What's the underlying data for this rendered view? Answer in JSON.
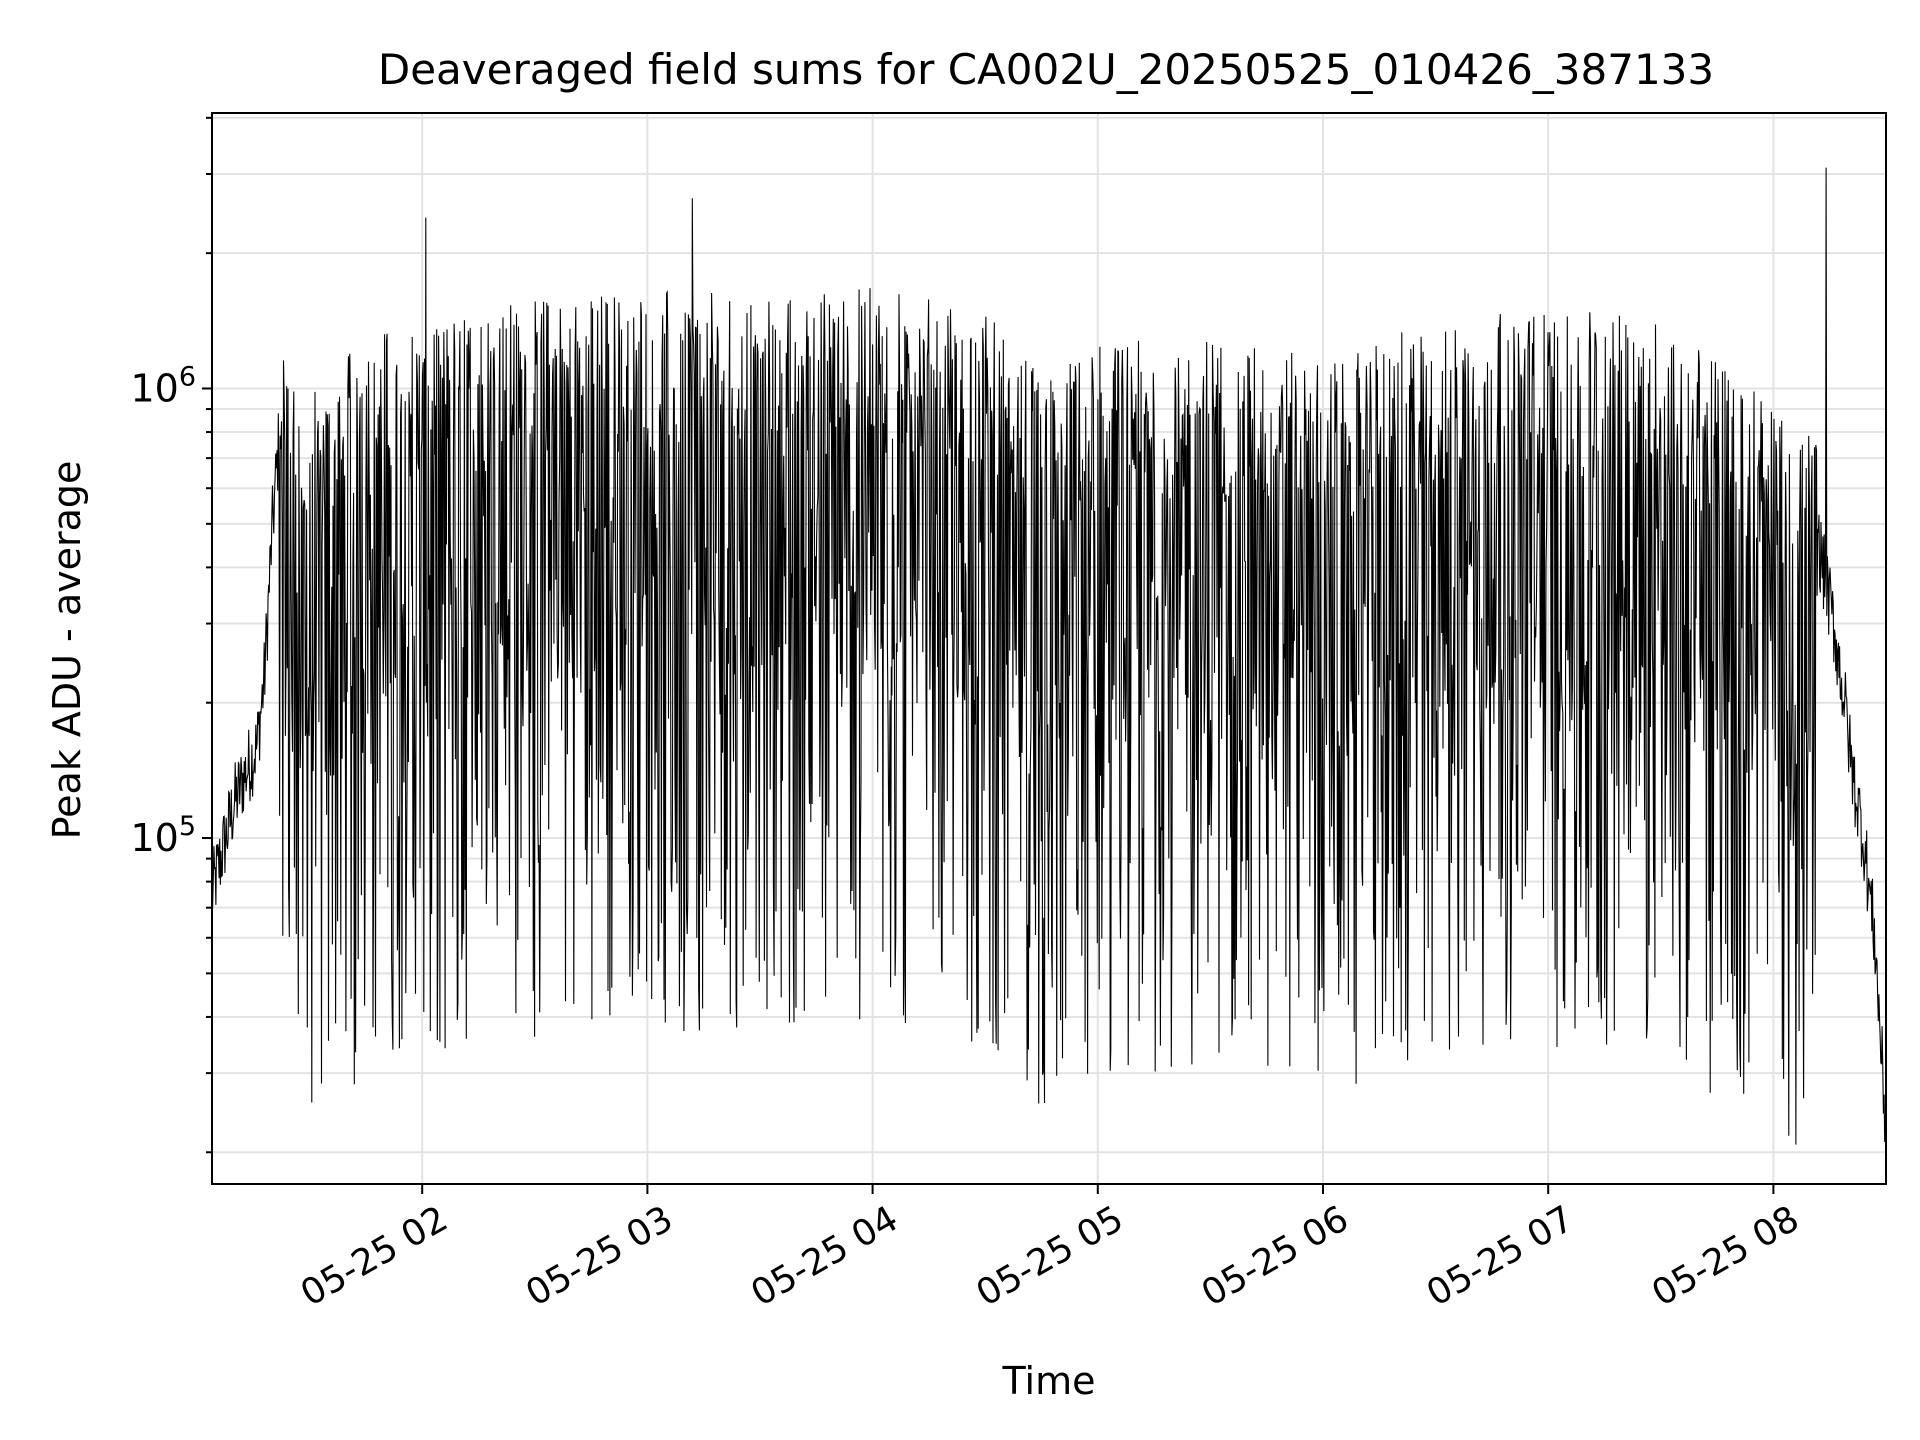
{
  "chart_data": {
    "type": "line",
    "title": "Deaveraged field sums for CA002U_20250525_010426_387133",
    "xlabel": "Time",
    "ylabel": "Peak ADU - average",
    "x_ticks": [
      "05-25 02",
      "05-25 03",
      "05-25 04",
      "05-25 05",
      "05-25 06",
      "05-25 07",
      "05-25 08"
    ],
    "xlim": [
      "2025-05-25 01:04",
      "2025-05-25 08:30"
    ],
    "y_scale": "log",
    "y_ticks": [
      {
        "value": 100000,
        "base": "10",
        "exp": "5"
      },
      {
        "value": 1000000,
        "base": "10",
        "exp": "6"
      }
    ],
    "ylim": [
      17000,
      4100000
    ],
    "grid": true,
    "line_color": "#000000",
    "grid_color": "#e3e3e3",
    "series": [
      {
        "name": "",
        "points": [
          [
            "2025-05-25 01:04",
            75000
          ],
          [
            "2025-05-25 01:07",
            95000
          ],
          [
            "2025-05-25 01:10",
            120000
          ],
          [
            "2025-05-25 01:13",
            140000
          ],
          [
            "2025-05-25 01:16",
            160000
          ],
          [
            "2025-05-25 01:18",
            230000
          ],
          [
            "2025-05-25 01:20",
            480000
          ],
          [
            "2025-05-25 01:22",
            800000
          ],
          [
            "2025-05-25 01:24",
            750000
          ],
          [
            "2025-05-25 01:27",
            600000
          ],
          [
            "2025-05-25 01:30",
            550000
          ],
          [
            "2025-05-25 01:35",
            600000
          ],
          [
            "2025-05-25 01:45",
            750000
          ],
          [
            "2025-05-25 02:00",
            800000
          ],
          [
            "2025-05-25 02:30",
            900000
          ],
          [
            "2025-05-25 03:00",
            950000
          ],
          [
            "2025-05-25 03:30",
            900000
          ],
          [
            "2025-05-25 04:00",
            950000
          ],
          [
            "2025-05-25 04:30",
            850000
          ],
          [
            "2025-05-25 04:45",
            600000
          ],
          [
            "2025-05-25 05:00",
            700000
          ],
          [
            "2025-05-25 05:30",
            750000
          ],
          [
            "2025-05-25 06:00",
            650000
          ],
          [
            "2025-05-25 06:30",
            800000
          ],
          [
            "2025-05-25 07:00",
            850000
          ],
          [
            "2025-05-25 07:30",
            800000
          ],
          [
            "2025-05-25 08:00",
            550000
          ],
          [
            "2025-05-25 08:12",
            450000
          ],
          [
            "2025-05-25 08:16",
            300000
          ],
          [
            "2025-05-25 08:19",
            200000
          ],
          [
            "2025-05-25 08:21",
            140000
          ],
          [
            "2025-05-25 08:24",
            100000
          ],
          [
            "2025-05-25 08:27",
            60000
          ],
          [
            "2025-05-25 08:30",
            22000
          ]
        ]
      }
    ],
    "annotated_spikes": [
      [
        "2025-05-25 02:01",
        2400000
      ],
      [
        "2025-05-25 03:12",
        2650000
      ],
      [
        "2025-05-25 08:14",
        3100000
      ]
    ]
  }
}
